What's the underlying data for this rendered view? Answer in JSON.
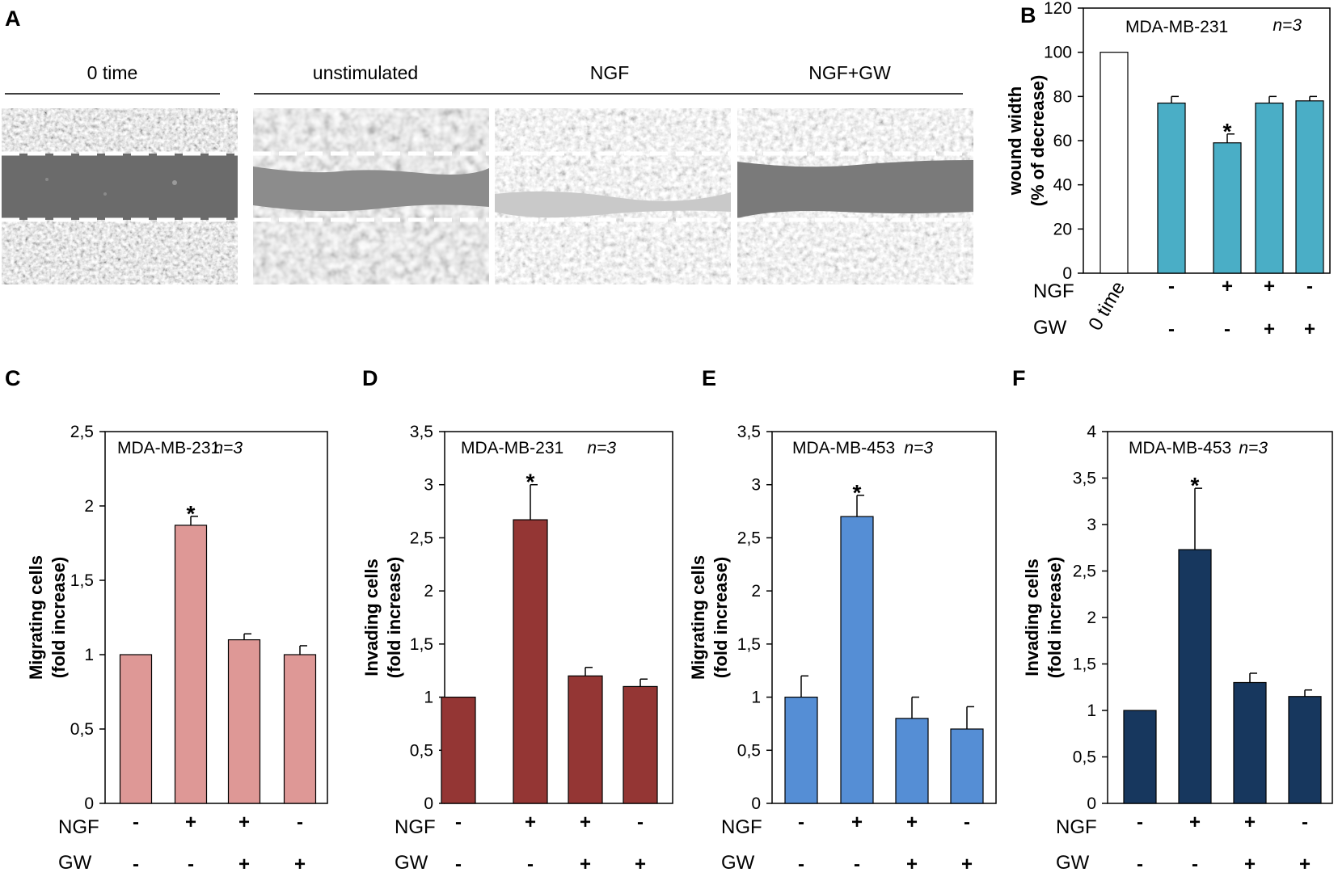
{
  "colors": {
    "scratch_border": "#ffffff",
    "open_bar": "#ffffff",
    "teal": "#4aaec6",
    "pink": "#de9896",
    "darkred": "#943634",
    "blue": "#558ed5",
    "navy": "#17375e"
  },
  "panel_a": {
    "letter": "A",
    "headers": {
      "time0": "0 time",
      "unstimulated": "unstimulated",
      "ngf": "NGF",
      "ngf_gw": "NGF+GW"
    }
  },
  "chart_data": [
    {
      "id": "B",
      "type": "bar",
      "panel_letter": "B",
      "inset_title": "MDA-MB-231",
      "inset_n": "n=3",
      "ylabel_line1": "wound width",
      "ylabel_line2": "(% of decrease)",
      "ylim": [
        0,
        120
      ],
      "yticks": [
        "0",
        "20",
        "40",
        "60",
        "80",
        "100",
        "120"
      ],
      "values": [
        100,
        77,
        59,
        77,
        78
      ],
      "errors": [
        0,
        3,
        4,
        3,
        2
      ],
      "significant": [
        false,
        false,
        true,
        false,
        false
      ],
      "first_category_label": "0 time",
      "ngf_row_label": "NGF",
      "gw_row_label": "GW",
      "ngf": [
        "-",
        "+",
        "+",
        "-"
      ],
      "gw": [
        "-",
        "-",
        "+",
        "+"
      ]
    },
    {
      "id": "C",
      "type": "bar",
      "panel_letter": "C",
      "inset_title": "MDA-MB-231",
      "inset_n": "n=3",
      "ylabel_line1": "Migrating cells",
      "ylabel_line2": "(fold increase)",
      "ylim": [
        0,
        2.5
      ],
      "yticks": [
        "0",
        "0,5",
        "1",
        "1,5",
        "2",
        "2,5"
      ],
      "values": [
        1.0,
        1.87,
        1.1,
        1.0
      ],
      "errors": [
        0,
        0.06,
        0.04,
        0.06
      ],
      "significant": [
        false,
        true,
        false,
        false
      ],
      "ngf_row_label": "NGF",
      "gw_row_label": "GW",
      "ngf": [
        "-",
        "+",
        "+",
        "-"
      ],
      "gw": [
        "-",
        "-",
        "+",
        "+"
      ]
    },
    {
      "id": "D",
      "type": "bar",
      "panel_letter": "D",
      "inset_title": "MDA-MB-231",
      "inset_n": "n=3",
      "ylabel_line1": "Invading cells",
      "ylabel_line2": "(fold increase)",
      "ylim": [
        0,
        3.5
      ],
      "yticks": [
        "0",
        "0,5",
        "1",
        "1,5",
        "2",
        "2,5",
        "3",
        "3,5"
      ],
      "values": [
        1.0,
        2.67,
        1.2,
        1.1
      ],
      "errors": [
        0,
        0.33,
        0.08,
        0.07
      ],
      "significant": [
        false,
        true,
        false,
        false
      ],
      "ngf_row_label": "NGF",
      "gw_row_label": "GW",
      "ngf": [
        "-",
        "+",
        "+",
        "-"
      ],
      "gw": [
        "-",
        "-",
        "+",
        "+"
      ]
    },
    {
      "id": "E",
      "type": "bar",
      "panel_letter": "E",
      "inset_title": "MDA-MB-453",
      "inset_n": "n=3",
      "ylabel_line1": "Migrating cells",
      "ylabel_line2": "(fold increase)",
      "ylim": [
        0,
        3.5
      ],
      "yticks": [
        "0",
        "0,5",
        "1",
        "1,5",
        "2",
        "2,5",
        "3",
        "3,5"
      ],
      "values": [
        1.0,
        2.7,
        0.8,
        0.7
      ],
      "errors": [
        0.2,
        0.2,
        0.2,
        0.21
      ],
      "significant": [
        false,
        true,
        false,
        false
      ],
      "ngf_row_label": "NGF",
      "gw_row_label": "GW",
      "ngf": [
        "-",
        "+",
        "+",
        "-"
      ],
      "gw": [
        "-",
        "-",
        "+",
        "+"
      ]
    },
    {
      "id": "F",
      "type": "bar",
      "panel_letter": "F",
      "inset_title": "MDA-MB-453",
      "inset_n": "n=3",
      "ylabel_line1": "Invading cells",
      "ylabel_line2": "(fold increase)",
      "ylim": [
        0,
        4
      ],
      "yticks": [
        "0",
        "0,5",
        "1",
        "1,5",
        "2",
        "2,5",
        "3",
        "3,5",
        "4"
      ],
      "values": [
        1.0,
        2.73,
        1.3,
        1.15
      ],
      "errors": [
        0,
        0.66,
        0.1,
        0.07
      ],
      "significant": [
        false,
        true,
        false,
        false
      ],
      "ngf_row_label": "NGF",
      "gw_row_label": "GW",
      "ngf": [
        "-",
        "+",
        "+",
        "-"
      ],
      "gw": [
        "-",
        "-",
        "+",
        "+"
      ]
    }
  ]
}
